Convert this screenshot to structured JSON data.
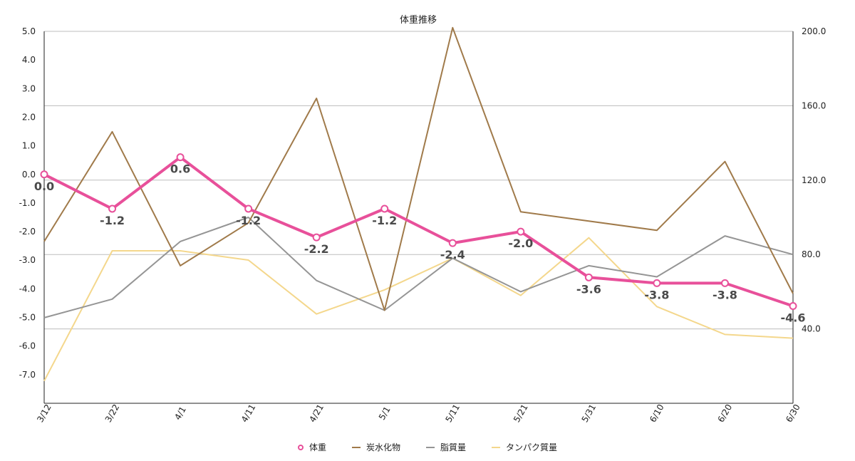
{
  "chart_data": {
    "type": "line",
    "title": "体重推移",
    "categories": [
      "3/12",
      "3/22",
      "4/1",
      "4/11",
      "4/21",
      "5/1",
      "5/11",
      "5/21",
      "5/31",
      "6/10",
      "6/20",
      "6/30"
    ],
    "y_left": {
      "ylim": [
        -8,
        5
      ],
      "ticks": [
        "5.0",
        "4.0",
        "3.0",
        "2.0",
        "1.0",
        "0.0",
        "-1.0",
        "-2.0",
        "-3.0",
        "-4.0",
        "-5.0",
        "-6.0",
        "-7.0"
      ]
    },
    "y_right": {
      "ylim": [
        0,
        200
      ],
      "ticks": [
        "200.0",
        "160.0",
        "120.0",
        "80.0",
        "40.0"
      ]
    },
    "grid": "horizontal (right axis)",
    "legend_position": "bottom-center",
    "series": [
      {
        "name": "体重",
        "axis": "left",
        "color": "#e8509a",
        "marker": "circle",
        "values": [
          0.0,
          -1.2,
          0.6,
          -1.2,
          -2.2,
          -1.2,
          -2.4,
          -2.0,
          -3.6,
          -3.8,
          -3.8,
          -4.6
        ],
        "labels": [
          "0.0",
          "-1.2",
          "0.6",
          "-1.2",
          "-2.2",
          "-1.2",
          "-2.4",
          "-2.0",
          "-3.6",
          "-3.8",
          "-3.8",
          "-4.6"
        ]
      },
      {
        "name": "炭水化物",
        "axis": "right",
        "color": "#a07a4a",
        "values": [
          87,
          146,
          74,
          97,
          164,
          50,
          202,
          103,
          null,
          93,
          130,
          59
        ]
      },
      {
        "name": "脂質量",
        "axis": "right",
        "color": "#959595",
        "values": [
          46,
          56,
          87,
          100,
          66,
          50,
          78,
          60,
          74,
          68,
          90,
          80
        ]
      },
      {
        "name": "タンパク質量",
        "axis": "right",
        "color": "#f4d78c",
        "values": [
          12,
          82,
          82,
          77,
          48,
          61,
          78,
          58,
          89,
          52,
          37,
          35
        ]
      }
    ]
  }
}
